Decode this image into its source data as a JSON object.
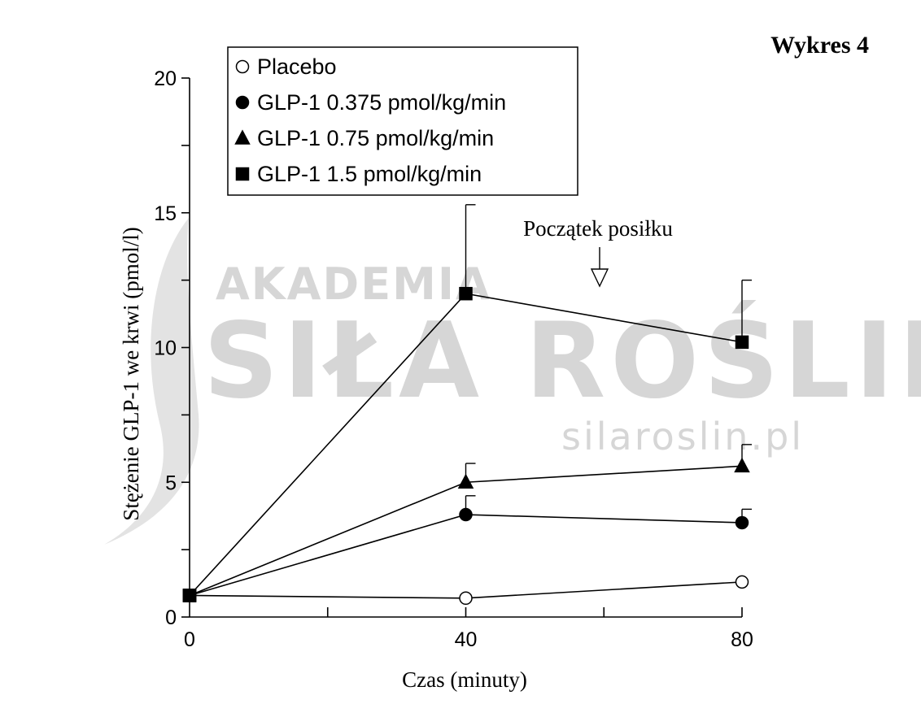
{
  "header": {
    "title": "Wykres 4"
  },
  "watermark": {
    "line1": "AKADEMIA",
    "line2": "SIŁA ROŚLIN",
    "url": "silaroslin.pl",
    "color": "#d6d6d6"
  },
  "chart_data": {
    "type": "line",
    "title": "Wykres 4",
    "xlabel": "Czas (minuty)",
    "ylabel": "Stężenie GLP-1 we krwi (pmol/l)",
    "xlim": [
      0,
      80
    ],
    "ylim": [
      0,
      20
    ],
    "x_ticks": [
      0,
      40,
      80
    ],
    "x_minor_ticks": [
      20,
      60
    ],
    "y_ticks": [
      0,
      5,
      10,
      15,
      20
    ],
    "y_minor_ticks": [
      2.5,
      7.5,
      12.5,
      17.5
    ],
    "grid": false,
    "legend_position": "top-left",
    "annotation": {
      "text": "Początek posiłku",
      "x": 60,
      "marker": "open-down-arrow"
    },
    "series": [
      {
        "name": "Placebo",
        "marker": "open-circle",
        "x": [
          0,
          40,
          80
        ],
        "y": [
          0.8,
          0.7,
          1.3
        ],
        "error": [
          0,
          0,
          0
        ]
      },
      {
        "name": "GLP-1 0.375 pmol/kg/min",
        "marker": "filled-circle",
        "x": [
          0,
          40,
          80
        ],
        "y": [
          0.8,
          3.8,
          3.5
        ],
        "error": [
          0,
          0.7,
          0.5
        ]
      },
      {
        "name": "GLP-1 0.75 pmol/kg/min",
        "marker": "filled-triangle",
        "x": [
          0,
          40,
          80
        ],
        "y": [
          0.8,
          5.0,
          5.6
        ],
        "error": [
          0,
          0.7,
          0.8
        ]
      },
      {
        "name": "GLP-1 1.5 pmol/kg/min",
        "marker": "filled-square",
        "x": [
          0,
          40,
          80
        ],
        "y": [
          0.8,
          12.0,
          10.2
        ],
        "error": [
          0,
          3.3,
          2.3
        ]
      }
    ]
  }
}
